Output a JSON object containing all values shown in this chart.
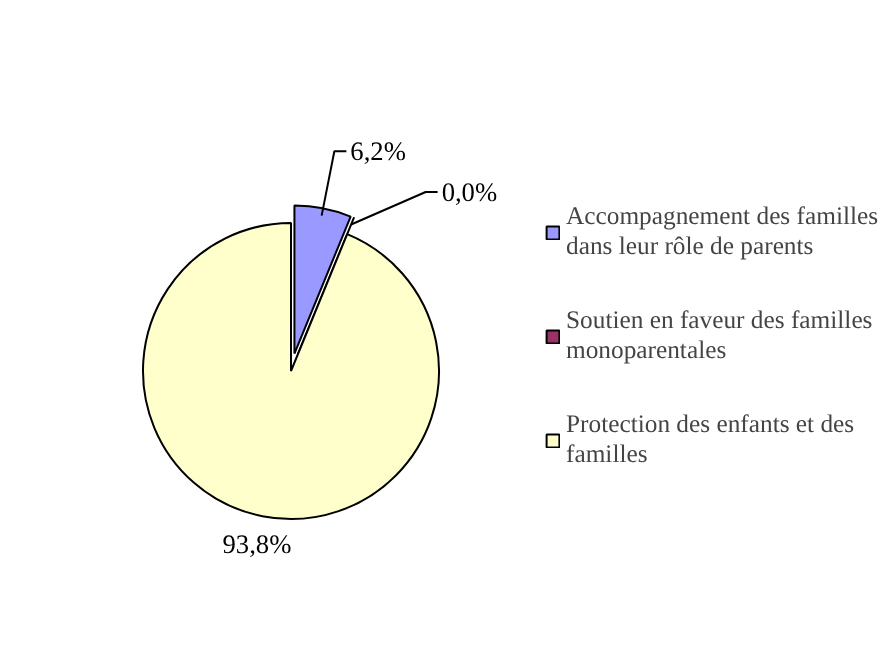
{
  "chart_data": {
    "type": "pie",
    "categories": [
      "Accompagnement des familles dans leur rôle de parents",
      "Soutien en faveur des familles monoparentales",
      "Protection des enfants et des familles"
    ],
    "values": [
      6.2,
      0.0,
      93.8
    ],
    "colors": [
      "#9999ff",
      "#993366",
      "#ffffcc"
    ],
    "value_labels": [
      "6,2%",
      "0,0%",
      "93,8%"
    ],
    "legend": "right"
  }
}
